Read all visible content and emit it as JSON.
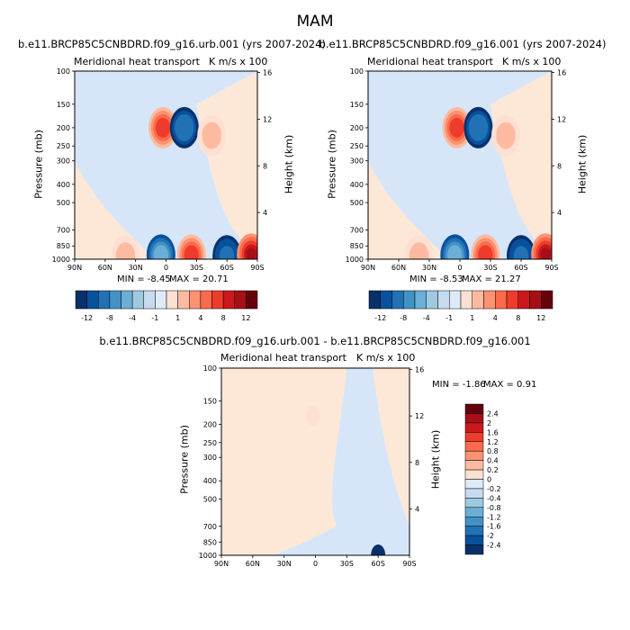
{
  "title": "MAM",
  "colors": {
    "neg": [
      "#08306b",
      "#08519c",
      "#2171b5",
      "#4292c6",
      "#6baed6",
      "#9ecae1",
      "#c6dbef",
      "#deebf7"
    ],
    "pos": [
      "#fee0d2",
      "#fcbba1",
      "#fc9272",
      "#fb6a4a",
      "#ef3b2c",
      "#cb181d",
      "#a50f15",
      "#67000d"
    ],
    "background_neg": "#d6e6f8",
    "background_pos": "#fde8d8"
  },
  "panels": [
    {
      "title": "b.e11.BRCP85C5CNBDRD.f09_g16.urb.001 (yrs 2007-2024)",
      "left_label": "Meridional heat transport",
      "right_label": "K m/s x 100",
      "min_text": "MIN = -8.45",
      "max_text": "MAX = 20.71"
    },
    {
      "title": "b.e11.BRCP85C5CNBDRD.f09_g16.001 (yrs 2007-2024)",
      "left_label": "Meridional heat transport",
      "right_label": "K m/s x 100",
      "min_text": "MIN = -8.53",
      "max_text": "MAX = 21.27"
    },
    {
      "title": "b.e11.BRCP85C5CNBDRD.f09_g16.urb.001 - b.e11.BRCP85C5CNBDRD.f09_g16.001",
      "left_label": "Meridional heat transport",
      "right_label": "K m/s x 100",
      "min_text": "MIN = -1.86",
      "max_text": "MAX =  0.91"
    }
  ],
  "axes": {
    "ylabel": "Pressure (mb)",
    "y2label": "Height (km)",
    "pressure_ticks": [
      "100",
      "150",
      "200",
      "250",
      "300",
      "400",
      "500",
      "700",
      "850",
      "1000"
    ],
    "height_ticks": [
      "16",
      "12",
      "8",
      "4"
    ],
    "lat_ticks": [
      "90N",
      "60N",
      "30N",
      "0",
      "30S",
      "60S",
      "90S"
    ]
  },
  "colorbar_top": {
    "labels": [
      "-12",
      "-8",
      "-4",
      "-1",
      "1",
      "4",
      "8",
      "12"
    ],
    "colors": [
      "#08306b",
      "#08519c",
      "#2171b5",
      "#4292c6",
      "#6baed6",
      "#9ecae1",
      "#c6dbef",
      "#deebf7",
      "#fee0d2",
      "#fcbba1",
      "#fc9272",
      "#fb6a4a",
      "#ef3b2c",
      "#cb181d",
      "#a50f15",
      "#67000d"
    ]
  },
  "colorbar_diff": {
    "labels": [
      "2.4",
      "2",
      "1.6",
      "1.2",
      "0.8",
      "0.4",
      "0.2",
      "0",
      "-0.2",
      "-0.4",
      "-0.8",
      "-1.2",
      "-1.6",
      "-2",
      "-2.4"
    ],
    "colors": [
      "#67000d",
      "#a50f15",
      "#cb181d",
      "#ef3b2c",
      "#fb6a4a",
      "#fc9272",
      "#fcbba1",
      "#fee0d2",
      "#deebf7",
      "#c6dbef",
      "#9ecae1",
      "#6baed6",
      "#4292c6",
      "#2171b5",
      "#08519c",
      "#08306b"
    ]
  },
  "chart_data": [
    {
      "type": "heatmap",
      "title": "b.e11.BRCP85C5CNBDRD.f09_g16.urb.001 (yrs 2007-2024)",
      "xlabel": "",
      "ylabel": "Pressure (mb)",
      "y2label": "Height (km)",
      "xlim": [
        90,
        -90
      ],
      "ylim": [
        1000,
        100
      ],
      "x_ticks": [
        "90N",
        "60N",
        "30N",
        "0",
        "30S",
        "60S",
        "90S"
      ],
      "y_ticks": [
        100,
        150,
        200,
        250,
        300,
        400,
        500,
        700,
        850,
        1000
      ],
      "min": -8.45,
      "max": 20.71,
      "features": [
        {
          "lat": 3,
          "p": 200,
          "value": 8
        },
        {
          "lat": -18,
          "p": 200,
          "value": -4
        },
        {
          "lat": -45,
          "p": 220,
          "value": 2
        },
        {
          "lat": 5,
          "p": 950,
          "value": -8
        },
        {
          "lat": -25,
          "p": 950,
          "value": 8
        },
        {
          "lat": -60,
          "p": 960,
          "value": -3
        },
        {
          "lat": -84,
          "p": 940,
          "value": 12
        },
        {
          "lat": 40,
          "p": 960,
          "value": 2
        }
      ]
    },
    {
      "type": "heatmap",
      "title": "b.e11.BRCP85C5CNBDRD.f09_g16.001 (yrs 2007-2024)",
      "xlabel": "",
      "ylabel": "Pressure (mb)",
      "y2label": "Height (km)",
      "xlim": [
        90,
        -90
      ],
      "ylim": [
        1000,
        100
      ],
      "x_ticks": [
        "90N",
        "60N",
        "30N",
        "0",
        "30S",
        "60S",
        "90S"
      ],
      "y_ticks": [
        100,
        150,
        200,
        250,
        300,
        400,
        500,
        700,
        850,
        1000
      ],
      "min": -8.53,
      "max": 21.27,
      "features": [
        {
          "lat": 3,
          "p": 200,
          "value": 8
        },
        {
          "lat": -18,
          "p": 200,
          "value": -4
        },
        {
          "lat": -45,
          "p": 220,
          "value": 2
        },
        {
          "lat": 5,
          "p": 950,
          "value": -8
        },
        {
          "lat": -25,
          "p": 950,
          "value": 8
        },
        {
          "lat": -60,
          "p": 960,
          "value": -3
        },
        {
          "lat": -84,
          "p": 940,
          "value": 12
        },
        {
          "lat": 40,
          "p": 960,
          "value": 2
        }
      ]
    },
    {
      "type": "heatmap",
      "title": "b.e11.BRCP85C5CNBDRD.f09_g16.urb.001 - b.e11.BRCP85C5CNBDRD.f09_g16.001",
      "xlabel": "",
      "ylabel": "Pressure (mb)",
      "y2label": "Height (km)",
      "xlim": [
        90,
        -90
      ],
      "ylim": [
        1000,
        100
      ],
      "x_ticks": [
        "90N",
        "60N",
        "30N",
        "0",
        "30S",
        "60S",
        "90S"
      ],
      "y_ticks": [
        100,
        150,
        200,
        250,
        300,
        400,
        500,
        700,
        850,
        1000
      ],
      "min": -1.86,
      "max": 0.91,
      "features": [
        {
          "lat": 2,
          "p": 180,
          "value": 0.4
        },
        {
          "lat": -60,
          "p": 1000,
          "value": -0.8
        }
      ]
    }
  ]
}
